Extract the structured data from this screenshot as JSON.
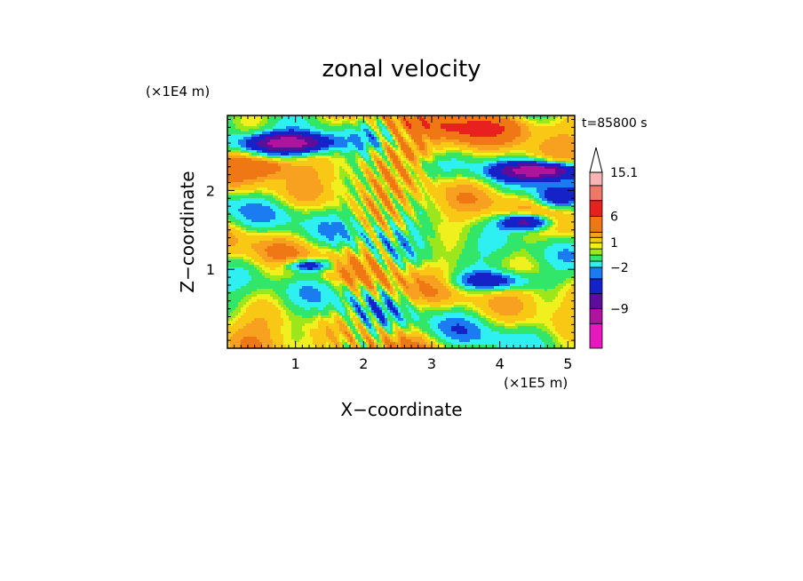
{
  "chart_data": {
    "type": "heatmap",
    "title": "zonal velocity",
    "xlabel": "X−coordinate",
    "ylabel": "Z−coordinate",
    "x_unit": "(×1E5 m)",
    "y_unit": "(×1E4 m)",
    "time_label": "t=85800 s",
    "xlim": [
      0,
      5.1
    ],
    "ylim": [
      0,
      2.95
    ],
    "x_ticks": [
      1,
      2,
      3,
      4,
      5
    ],
    "x_tick_labels": [
      "1",
      "2",
      "3",
      "4",
      "5"
    ],
    "y_ticks": [
      1,
      2
    ],
    "y_tick_labels": [
      "1",
      "2"
    ],
    "colorbar": {
      "labels": [
        {
          "value": 15.1,
          "text": "15.1"
        },
        {
          "value": 6,
          "text": "6"
        },
        {
          "value": 1,
          "text": "1"
        },
        {
          "value": -2,
          "text": "−2"
        },
        {
          "value": -9,
          "text": "−9"
        }
      ],
      "levels": [
        {
          "min": -20,
          "max": -12,
          "color": "#e817c0"
        },
        {
          "min": -12,
          "max": -9,
          "color": "#b1149c"
        },
        {
          "min": -9,
          "max": -6,
          "color": "#5c0d9a"
        },
        {
          "min": -6,
          "max": -3,
          "color": "#1522c8"
        },
        {
          "min": -3,
          "max": -2,
          "color": "#1a7cf0"
        },
        {
          "min": -2,
          "max": -1,
          "color": "#2ff0f0"
        },
        {
          "min": -1,
          "max": 0,
          "color": "#32e66a"
        },
        {
          "min": 0,
          "max": 0.5,
          "color": "#9de61c"
        },
        {
          "min": 0.5,
          "max": 1,
          "color": "#f0f01e"
        },
        {
          "min": 1,
          "max": 2,
          "color": "#f8c814"
        },
        {
          "min": 2,
          "max": 3,
          "color": "#f8a020"
        },
        {
          "min": 3,
          "max": 6,
          "color": "#f07814"
        },
        {
          "min": 6,
          "max": 9,
          "color": "#e82020"
        },
        {
          "min": 9,
          "max": 12,
          "color": "#f07868"
        },
        {
          "min": 12,
          "max": 15.1,
          "color": "#f8b4b4"
        }
      ],
      "overflow_color": "#ffffff"
    }
  }
}
